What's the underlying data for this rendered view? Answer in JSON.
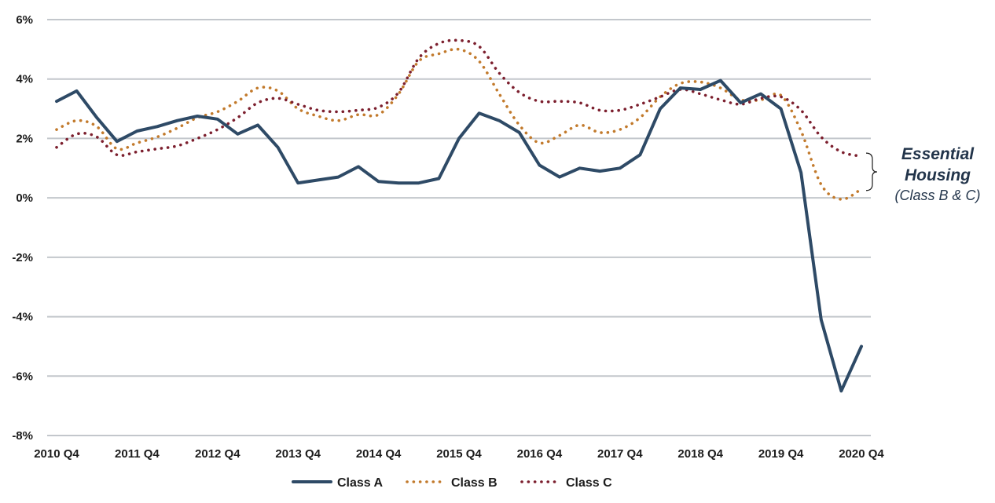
{
  "chart_data": {
    "type": "line",
    "x": [
      "2010 Q4",
      "2011 Q1",
      "2011 Q2",
      "2011 Q3",
      "2011 Q4",
      "2012 Q1",
      "2012 Q2",
      "2012 Q3",
      "2012 Q4",
      "2013 Q1",
      "2013 Q2",
      "2013 Q3",
      "2013 Q4",
      "2014 Q1",
      "2014 Q2",
      "2014 Q3",
      "2014 Q4",
      "2015 Q1",
      "2015 Q2",
      "2015 Q3",
      "2015 Q4",
      "2016 Q1",
      "2016 Q2",
      "2016 Q3",
      "2016 Q4",
      "2017 Q1",
      "2017 Q2",
      "2017 Q3",
      "2017 Q4",
      "2018 Q1",
      "2018 Q2",
      "2018 Q3",
      "2018 Q4",
      "2019 Q1",
      "2019 Q2",
      "2019 Q3",
      "2019 Q4",
      "2020 Q1",
      "2020 Q2",
      "2020 Q3",
      "2020 Q4"
    ],
    "x_tick_labels": [
      "2010 Q4",
      "2011 Q4",
      "2012 Q4",
      "2013 Q4",
      "2014 Q4",
      "2015 Q4",
      "2016 Q4",
      "2017 Q4",
      "2018 Q4",
      "2019 Q4",
      "2020 Q4"
    ],
    "y_tick_labels": [
      "6%",
      "4%",
      "2%",
      "0%",
      "-2%",
      "-4%",
      "-6%",
      "-8%"
    ],
    "ylim": [
      -8,
      6
    ],
    "y_ticks": [
      6,
      4,
      2,
      0,
      -2,
      -4,
      -6,
      -8
    ],
    "grid": "horizontal",
    "legend_position": "bottom-center",
    "title": "",
    "xlabel": "",
    "ylabel": "",
    "series": [
      {
        "name": "Class A",
        "style": "solid",
        "color": "#2e4a66",
        "values": [
          3.25,
          3.6,
          2.7,
          1.9,
          2.25,
          2.4,
          2.6,
          2.75,
          2.65,
          2.15,
          2.45,
          1.7,
          0.5,
          0.6,
          0.7,
          1.05,
          0.55,
          0.5,
          0.5,
          0.65,
          2.0,
          2.85,
          2.6,
          2.2,
          1.1,
          0.7,
          1.0,
          0.9,
          1.0,
          1.45,
          3.0,
          3.7,
          3.65,
          3.95,
          3.2,
          3.5,
          3.0,
          0.85,
          -4.1,
          -6.5,
          -5.0
        ]
      },
      {
        "name": "Class B",
        "style": "dotted",
        "color": "#c27a2c",
        "values": [
          2.3,
          2.6,
          2.4,
          1.65,
          1.85,
          2.05,
          2.35,
          2.7,
          2.9,
          3.25,
          3.7,
          3.6,
          3.0,
          2.75,
          2.6,
          2.8,
          2.8,
          3.5,
          4.6,
          4.85,
          5.0,
          4.6,
          3.5,
          2.45,
          1.85,
          2.1,
          2.45,
          2.2,
          2.3,
          2.7,
          3.4,
          3.85,
          3.9,
          3.7,
          3.3,
          3.3,
          3.45,
          2.25,
          0.45,
          -0.05,
          0.3
        ]
      },
      {
        "name": "Class C",
        "style": "dotted",
        "color": "#7c1f2e",
        "values": [
          1.7,
          2.15,
          2.05,
          1.45,
          1.55,
          1.65,
          1.75,
          2.0,
          2.3,
          2.7,
          3.2,
          3.35,
          3.15,
          2.95,
          2.9,
          2.95,
          3.05,
          3.55,
          4.7,
          5.2,
          5.3,
          5.1,
          4.2,
          3.55,
          3.25,
          3.25,
          3.2,
          2.95,
          2.95,
          3.15,
          3.4,
          3.65,
          3.5,
          3.3,
          3.15,
          3.35,
          3.4,
          2.95,
          2.05,
          1.55,
          1.4
        ]
      }
    ],
    "annotation": {
      "title_line1": "Essential",
      "title_line2": "Housing",
      "subtitle": "(Class B & C)"
    }
  }
}
